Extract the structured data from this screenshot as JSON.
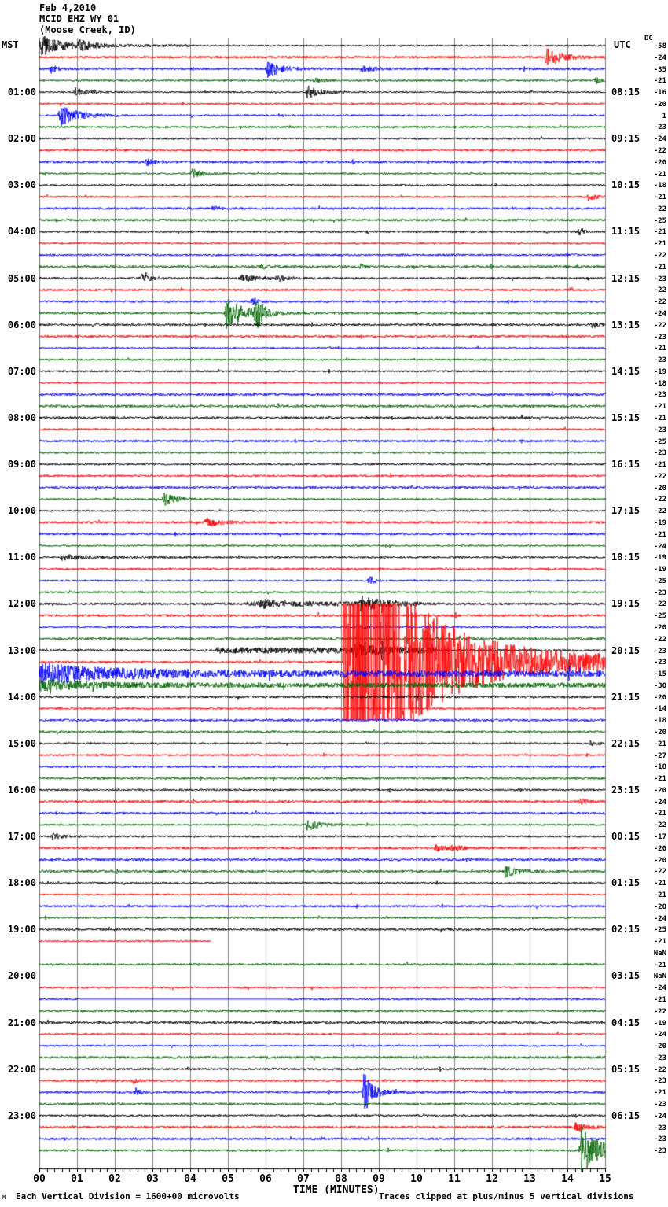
{
  "header": {
    "date": "Feb 4,2010",
    "station": "MCID EHZ WY 01",
    "location": "(Moose Creek, ID)"
  },
  "left_axis": {
    "title": "MST",
    "hour_labels": [
      "01:00",
      "02:00",
      "03:00",
      "04:00",
      "05:00",
      "06:00",
      "07:00",
      "08:00",
      "09:00",
      "10:00",
      "11:00",
      "12:00",
      "13:00",
      "14:00",
      "15:00",
      "16:00",
      "17:00",
      "18:00",
      "19:00",
      "20:00",
      "21:00",
      "22:00",
      "23:00"
    ]
  },
  "right_axis": {
    "title": "UTC",
    "hour_labels": [
      "08:15",
      "09:15",
      "10:15",
      "11:15",
      "12:15",
      "13:15",
      "14:15",
      "15:15",
      "16:15",
      "17:15",
      "18:15",
      "19:15",
      "20:15",
      "21:15",
      "22:15",
      "23:15",
      "00:15",
      "01:15",
      "02:15",
      "03:15",
      "04:15",
      "05:15",
      "06:15"
    ]
  },
  "dc_column": {
    "header": "DC",
    "values": [
      "-58",
      "-24",
      "-35",
      "-21",
      "-16",
      "-20",
      "1",
      "-23",
      "-24",
      "-22",
      "-20",
      "-21",
      "-18",
      "-21",
      "-22",
      "-25",
      "-21",
      "-21",
      "-22",
      "-21",
      "-23",
      "-22",
      "-22",
      "-24",
      "-22",
      "-23",
      "-21",
      "-23",
      "-19",
      "-18",
      "-23",
      "-21",
      "-21",
      "-23",
      "-25",
      "-23",
      "-21",
      "-22",
      "-20",
      "-22",
      "-22",
      "-19",
      "-21",
      "-24",
      "-19",
      "-19",
      "-25",
      "-23",
      "-22",
      "-25",
      "-20",
      "-22",
      "-23",
      "-23",
      "-15",
      "-30",
      "-20",
      "-14",
      "-18",
      "-20",
      "-21",
      "-27",
      "-18",
      "-21",
      "-20",
      "-24",
      "-21",
      "-22",
      "-17",
      "-20",
      "-20",
      "-22",
      "-21",
      "-21",
      "-20",
      "-24",
      "-25",
      "-21",
      "NaN",
      "-21",
      "NaN",
      "-24",
      "-21",
      "-22",
      "-19",
      "-24",
      "-20",
      "-23",
      "-22",
      "-23",
      "-21",
      "-23",
      "-24",
      "-23",
      "-23",
      "-23"
    ]
  },
  "x_axis": {
    "title": "TIME (MINUTES)",
    "tick_labels": [
      "00",
      "01",
      "02",
      "03",
      "04",
      "05",
      "06",
      "07",
      "08",
      "09",
      "10",
      "11",
      "12",
      "13",
      "14",
      "15"
    ]
  },
  "footer": {
    "logo": "M",
    "left_note": "Each Vertical Division = 1600+00 microvolts",
    "right_note": "Traces clipped at plus/minus 5 vertical divisions"
  },
  "colors": {
    "trace_cycle": [
      "#000000",
      "#ff0000",
      "#0000ff",
      "#006400"
    ],
    "grid": "#808080",
    "axis": "#000000"
  },
  "chart_data": {
    "type": "line",
    "kind": "helicorder-seismogram",
    "lines": 96,
    "minutes_per_line": 15,
    "start_time_mst": "00:00",
    "x_range": [
      0,
      15
    ],
    "clip_divisions": 5,
    "grid": "vertical-every-minute",
    "events": [
      [
        0,
        0.02,
        0.55,
        13
      ],
      [
        0,
        1.05,
        0.3,
        6
      ],
      [
        1,
        13.45,
        0.35,
        13
      ],
      [
        2,
        0.3,
        0.2,
        5
      ],
      [
        2,
        6.05,
        0.35,
        11
      ],
      [
        2,
        8.55,
        0.25,
        5
      ],
      [
        3,
        7.3,
        0.2,
        3
      ],
      [
        3,
        14.75,
        0.15,
        4
      ],
      [
        4,
        0.95,
        0.3,
        5
      ],
      [
        4,
        7.1,
        0.3,
        9
      ],
      [
        6,
        0.55,
        0.45,
        14
      ],
      [
        10,
        2.85,
        0.2,
        5
      ],
      [
        11,
        4.05,
        0.25,
        6
      ],
      [
        13,
        14.55,
        0.2,
        5
      ],
      [
        14,
        4.6,
        0.15,
        4
      ],
      [
        16,
        14.3,
        0.12,
        5
      ],
      [
        19,
        5.9,
        0.15,
        3
      ],
      [
        19,
        8.5,
        0.15,
        3
      ],
      [
        20,
        2.7,
        0.25,
        5
      ],
      [
        20,
        5.35,
        0.4,
        5
      ],
      [
        20,
        6.3,
        0.2,
        4
      ],
      [
        22,
        5.65,
        0.12,
        6
      ],
      [
        23,
        4.95,
        0.5,
        20
      ],
      [
        23,
        5.75,
        0.15,
        24
      ],
      [
        24,
        14.65,
        0.15,
        5
      ],
      [
        39,
        3.3,
        0.3,
        8
      ],
      [
        41,
        4.4,
        0.35,
        6
      ],
      [
        44,
        0.6,
        0.8,
        3.5
      ],
      [
        46,
        8.75,
        0.15,
        6
      ],
      [
        48,
        5.85,
        0.4,
        5
      ],
      [
        48,
        8.5,
        0.5,
        9
      ],
      [
        50,
        8.6,
        0.15,
        3
      ],
      [
        52,
        8.35,
        0.5,
        7
      ],
      [
        60,
        14.65,
        0.12,
        4
      ],
      [
        65,
        14.35,
        0.15,
        5
      ],
      [
        67,
        7.1,
        0.35,
        7
      ],
      [
        68,
        0.35,
        0.25,
        4
      ],
      [
        69,
        10.5,
        0.35,
        4
      ],
      [
        69,
        10.95,
        0.2,
        3
      ],
      [
        71,
        12.35,
        0.3,
        7
      ],
      [
        89,
        2.5,
        0.12,
        3
      ],
      [
        90,
        2.55,
        0.15,
        5
      ],
      [
        90,
        8.6,
        0.35,
        14
      ],
      [
        90,
        8.62,
        0.08,
        24
      ],
      [
        93,
        14.2,
        0.3,
        5
      ],
      [
        95,
        14.35,
        0.4,
        20
      ],
      [
        95,
        14.45,
        1.5,
        8
      ]
    ],
    "mainshock": {
      "row": 53,
      "onset_min": 8.05,
      "terms": [
        [
          300,
          1.1
        ],
        [
          40,
          3.0
        ],
        [
          12,
          8.0
        ]
      ]
    },
    "coda_decays": {
      "54": {
        "a": 10,
        "tau": 2.2,
        "base": 3.5
      },
      "55": {
        "a": 5,
        "tau": 1.5,
        "base": 2.2
      }
    },
    "elevated_segments": [
      [
        0,
        0,
        4,
        0.7
      ],
      [
        48,
        5.5,
        10,
        1.5
      ],
      [
        52,
        4.7,
        10.5,
        2.5
      ]
    ],
    "missing_lines": [
      78,
      80
    ],
    "partial_lines": {
      "77": {
        "end_min": 4.55
      }
    },
    "flat_segments": {
      "82": [
        1.08,
        6.6
      ]
    }
  }
}
